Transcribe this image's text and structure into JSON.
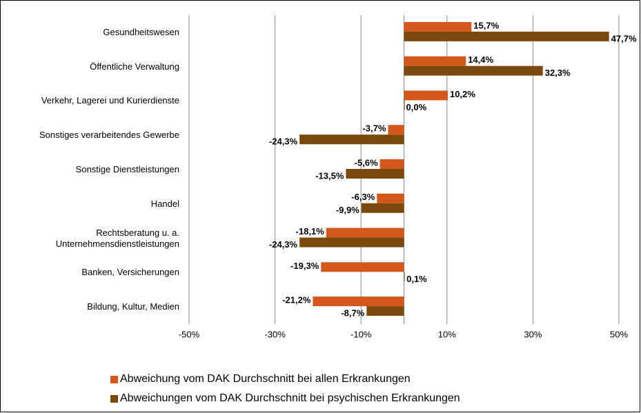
{
  "chart_data": {
    "type": "barh",
    "categories": [
      "Gesundheitswesen",
      "Öffentliche Verwaltung",
      "Verkehr, Lagerei und Kurierdienste",
      "Sonstiges verarbeitendes Gewerbe",
      "Sonstige Dienstleistungen",
      "Handel",
      "Rechtsberatung u. a. Unternehmensdienstleistungen",
      "Banken, Versicherungen",
      "Bildung, Kultur,  Medien"
    ],
    "series": [
      {
        "name": "Abweichung vom DAK Durchschnitt bei allen Erkrankungen",
        "color": "#d4581c",
        "values": [
          15.7,
          14.4,
          10.2,
          -3.7,
          -5.6,
          -6.3,
          -18.1,
          -19.3,
          -21.2
        ],
        "value_labels": [
          "15,7%",
          "14,4%",
          "10,2%",
          "-3,7%",
          "-5,6%",
          "-6,3%",
          "-18,1%",
          "-19,3%",
          "-21,2%"
        ]
      },
      {
        "name": "Abweichungen vom DAK Durchschnitt bei psychischen Erkrankungen",
        "color": "#7b4a0a",
        "values": [
          47.7,
          32.3,
          0.0,
          -24.3,
          -13.5,
          -9.9,
          -24.3,
          0.1,
          -8.7
        ],
        "value_labels": [
          "47,7%",
          "32,3%",
          "0,0%",
          "-24,3%",
          "-13,5%",
          "-9,9%",
          "-24,3%",
          "0,1%",
          "-8,7%"
        ]
      }
    ],
    "xlim": [
      -50,
      50
    ],
    "xticks": [
      {
        "value": -50,
        "label": "-50%"
      },
      {
        "value": -30,
        "label": "-30%"
      },
      {
        "value": -10,
        "label": "-10%"
      },
      {
        "value": 10,
        "label": "10%"
      },
      {
        "value": 30,
        "label": "30%"
      },
      {
        "value": 50,
        "label": "50%"
      }
    ],
    "grid": true,
    "legend": "bottom"
  }
}
